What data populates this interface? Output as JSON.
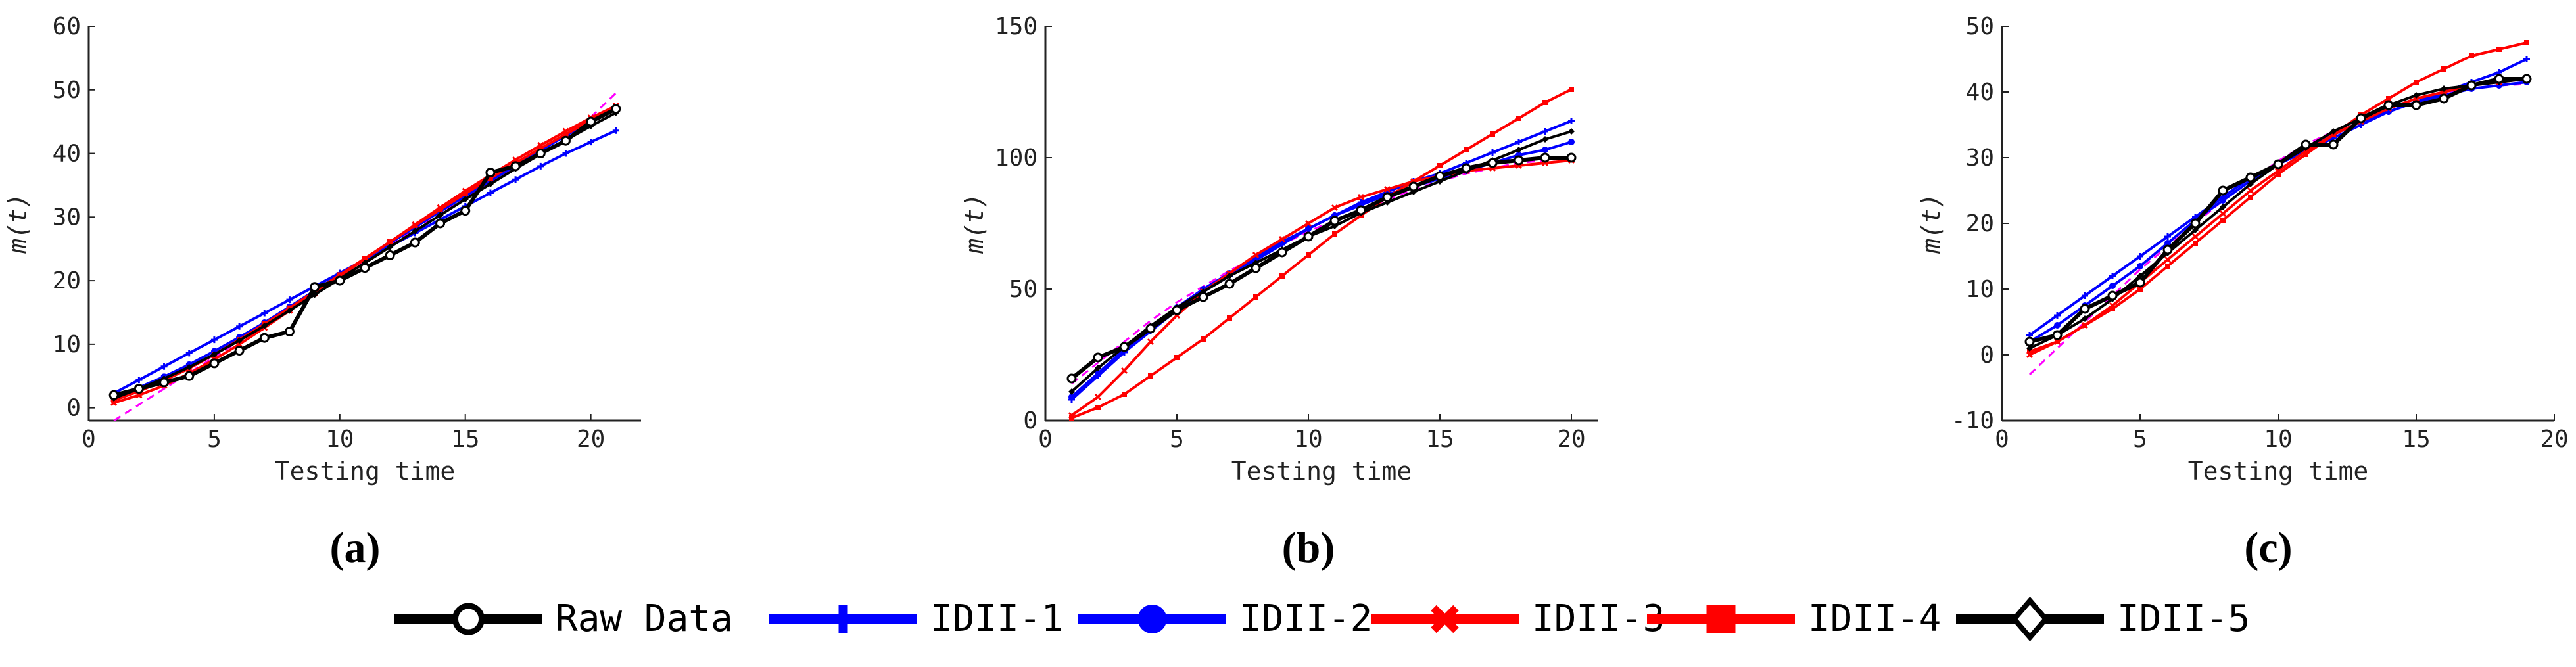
{
  "figure": {
    "panel_labels": [
      "(a)",
      "(b)",
      "(c)"
    ]
  },
  "legend": {
    "entries": [
      {
        "label": "Raw Data",
        "color": "#000000",
        "marker": "circle-open"
      },
      {
        "label": "IDII-1",
        "color": "#0000ff",
        "marker": "plus"
      },
      {
        "label": "IDII-2",
        "color": "#0000ff",
        "marker": "circle-filled"
      },
      {
        "label": "IDII-3",
        "color": "#ff0000",
        "marker": "x"
      },
      {
        "label": "IDII-4",
        "color": "#ff0000",
        "marker": "square"
      },
      {
        "label": "IDII-5",
        "color": "#000000",
        "marker": "diamond"
      }
    ]
  },
  "chart_data": [
    {
      "type": "line",
      "panel": "(a)",
      "xlabel": "Testing time",
      "ylabel": "m(t)",
      "xlim": [
        0,
        22
      ],
      "ylim": [
        -2,
        60
      ],
      "xticks": [
        0,
        5,
        10,
        15,
        20
      ],
      "yticks": [
        0,
        10,
        20,
        30,
        40,
        50,
        60
      ],
      "x": [
        1,
        2,
        3,
        4,
        5,
        6,
        7,
        8,
        9,
        10,
        11,
        12,
        13,
        14,
        15,
        16,
        17,
        18,
        19,
        20,
        21
      ],
      "series": [
        {
          "name": "Raw Data",
          "color": "#000000",
          "values": [
            2,
            3,
            4,
            5,
            7,
            9,
            11,
            12,
            19,
            20,
            22,
            24,
            26,
            29,
            31,
            37,
            38,
            40,
            42,
            45,
            47
          ]
        },
        {
          "name": "IDII-1",
          "color": "#0000ff",
          "values": [
            2.3,
            4.4,
            6.5,
            8.6,
            10.7,
            12.8,
            14.9,
            17,
            19.1,
            21.2,
            23.3,
            25.4,
            27.5,
            29.6,
            31.7,
            33.8,
            35.9,
            38,
            40,
            41.8,
            43.6
          ]
        },
        {
          "name": "IDII-2",
          "color": "#0000ff",
          "values": [
            1.7,
            3.2,
            4.9,
            6.8,
            8.9,
            11.1,
            13.4,
            15.9,
            18.4,
            20.9,
            23.4,
            25.9,
            28.4,
            30.9,
            33.3,
            35.7,
            38.1,
            40.5,
            42.8,
            45.1,
            47.3
          ]
        },
        {
          "name": "IDII-3",
          "color": "#ff0000",
          "values": [
            0.8,
            2,
            3.5,
            5.4,
            7.6,
            10,
            12.6,
            15.3,
            18,
            20.7,
            23.4,
            26.1,
            28.8,
            31.5,
            34.1,
            36.6,
            39,
            41.3,
            43.5,
            45.6,
            47.5
          ]
        },
        {
          "name": "IDII-4",
          "color": "#ff0000",
          "values": [
            1.2,
            2.6,
            4.3,
            6.2,
            8.4,
            10.7,
            13.2,
            15.7,
            18.3,
            20.9,
            23.5,
            26.1,
            28.7,
            31.2,
            33.7,
            36.1,
            38.5,
            40.8,
            43,
            45.2,
            47.2
          ]
        },
        {
          "name": "IDII-5",
          "color": "#000000",
          "values": [
            1.5,
            3,
            4.6,
            6.4,
            8.4,
            10.6,
            12.9,
            15.3,
            17.8,
            20.3,
            22.8,
            25.3,
            27.8,
            30.3,
            32.8,
            35.2,
            37.6,
            39.9,
            42.1,
            44.3,
            46.4
          ]
        },
        {
          "name": "",
          "color": "#ff00ff",
          "dashed": true,
          "values": [
            -2,
            0.5,
            3,
            5.5,
            8,
            10.5,
            13,
            15.5,
            18,
            20.5,
            23,
            25.5,
            28,
            30.5,
            33,
            35.5,
            38,
            40.5,
            43,
            45.7,
            49.5
          ]
        }
      ]
    },
    {
      "type": "line",
      "panel": "(b)",
      "xlabel": "Testing time",
      "ylabel": "m(t)",
      "xlim": [
        0,
        21
      ],
      "ylim": [
        0,
        150
      ],
      "xticks": [
        0,
        5,
        10,
        15,
        20
      ],
      "yticks": [
        0,
        50,
        100,
        150
      ],
      "x": [
        1,
        2,
        3,
        4,
        5,
        6,
        7,
        8,
        9,
        10,
        11,
        12,
        13,
        14,
        15,
        16,
        17,
        18,
        19,
        20
      ],
      "series": [
        {
          "name": "Raw Data",
          "color": "#000000",
          "values": [
            16,
            24,
            28,
            35,
            42,
            47,
            52,
            58,
            64,
            70,
            76,
            80,
            85,
            89,
            93,
            96,
            98,
            99,
            100,
            100
          ]
        },
        {
          "name": "IDII-1",
          "color": "#0000ff",
          "values": [
            8,
            17,
            26,
            34,
            42,
            49,
            55,
            61,
            67,
            73,
            78,
            83,
            87,
            91,
            94,
            98,
            102,
            106,
            110,
            114
          ]
        },
        {
          "name": "IDII-2",
          "color": "#0000ff",
          "values": [
            9,
            18,
            27,
            35,
            43,
            50,
            56,
            62,
            68,
            73,
            78,
            82,
            86,
            89,
            92,
            95,
            98,
            101,
            103,
            106
          ]
        },
        {
          "name": "IDII-3",
          "color": "#ff0000",
          "values": [
            2,
            9,
            19,
            30,
            40,
            49,
            56,
            63,
            69,
            75,
            81,
            85,
            88,
            91,
            93,
            95,
            96,
            97,
            98,
            99
          ]
        },
        {
          "name": "IDII-4",
          "color": "#ff0000",
          "values": [
            1,
            5,
            10,
            17,
            24,
            31,
            39,
            47,
            55,
            63,
            71,
            78,
            85,
            91,
            97,
            103,
            109,
            115,
            121,
            126
          ]
        },
        {
          "name": "IDII-5",
          "color": "#000000",
          "values": [
            11,
            20,
            28,
            36,
            43,
            49,
            55,
            60,
            65,
            70,
            74,
            79,
            83,
            87,
            91,
            95,
            99,
            103,
            107,
            110
          ]
        },
        {
          "name": "",
          "color": "#ff00ff",
          "dashed": true,
          "values": [
            14,
            22,
            30,
            38,
            45,
            51,
            57,
            62,
            67,
            72,
            76,
            80,
            84,
            88,
            91,
            94,
            96,
            98,
            99,
            100
          ]
        }
      ]
    },
    {
      "type": "line",
      "panel": "(c)",
      "xlabel": "Testing time",
      "ylabel": "m(t)",
      "xlim": [
        0,
        20
      ],
      "ylim": [
        -10,
        50
      ],
      "xticks": [
        0,
        5,
        10,
        15,
        20
      ],
      "yticks": [
        -10,
        0,
        10,
        20,
        30,
        40,
        50
      ],
      "x": [
        1,
        2,
        3,
        4,
        5,
        6,
        7,
        8,
        9,
        10,
        11,
        12,
        13,
        14,
        15,
        16,
        17,
        18,
        19
      ],
      "series": [
        {
          "name": "Raw Data",
          "color": "#000000",
          "values": [
            2,
            3,
            7,
            9,
            11,
            16,
            20,
            25,
            27,
            29,
            32,
            32,
            36,
            38,
            38,
            39,
            41,
            42,
            42
          ]
        },
        {
          "name": "IDII-1",
          "color": "#0000ff",
          "values": [
            3,
            6,
            9,
            12,
            15,
            18,
            21,
            24,
            27,
            29,
            31,
            33,
            35,
            37,
            38.5,
            40,
            41.5,
            43,
            45
          ]
        },
        {
          "name": "IDII-2",
          "color": "#0000ff",
          "values": [
            2,
            4.5,
            7.5,
            10.5,
            13.5,
            17,
            20.5,
            23.5,
            26.5,
            29,
            31.5,
            33.5,
            35.5,
            37,
            38.5,
            39.5,
            40.5,
            41,
            41.5
          ]
        },
        {
          "name": "IDII-3",
          "color": "#ff0000",
          "values": [
            0,
            2,
            4.5,
            7.5,
            11,
            14.5,
            18,
            21.5,
            25,
            28,
            31,
            33.5,
            35.5,
            37.5,
            39,
            40,
            41,
            41.5,
            42
          ]
        },
        {
          "name": "IDII-4",
          "color": "#ff0000",
          "values": [
            0.5,
            2,
            4.5,
            7,
            10,
            13.5,
            17,
            20.5,
            24,
            27.5,
            30.5,
            33.5,
            36.5,
            39,
            41.5,
            43.5,
            45.5,
            46.5,
            47.5
          ]
        },
        {
          "name": "IDII-5",
          "color": "#000000",
          "values": [
            1,
            3,
            5.5,
            8.5,
            12,
            15.5,
            19,
            22.5,
            26,
            29,
            31.5,
            34,
            36,
            38,
            39.5,
            40.5,
            41,
            41.5,
            42
          ]
        },
        {
          "name": "",
          "color": "#ff00ff",
          "dashed": true,
          "values": [
            -3,
            1,
            5,
            9,
            13,
            16.5,
            20,
            23.5,
            26.5,
            29.5,
            32,
            34,
            36,
            37.5,
            39,
            40,
            40.5,
            41,
            41.2
          ]
        }
      ]
    }
  ]
}
